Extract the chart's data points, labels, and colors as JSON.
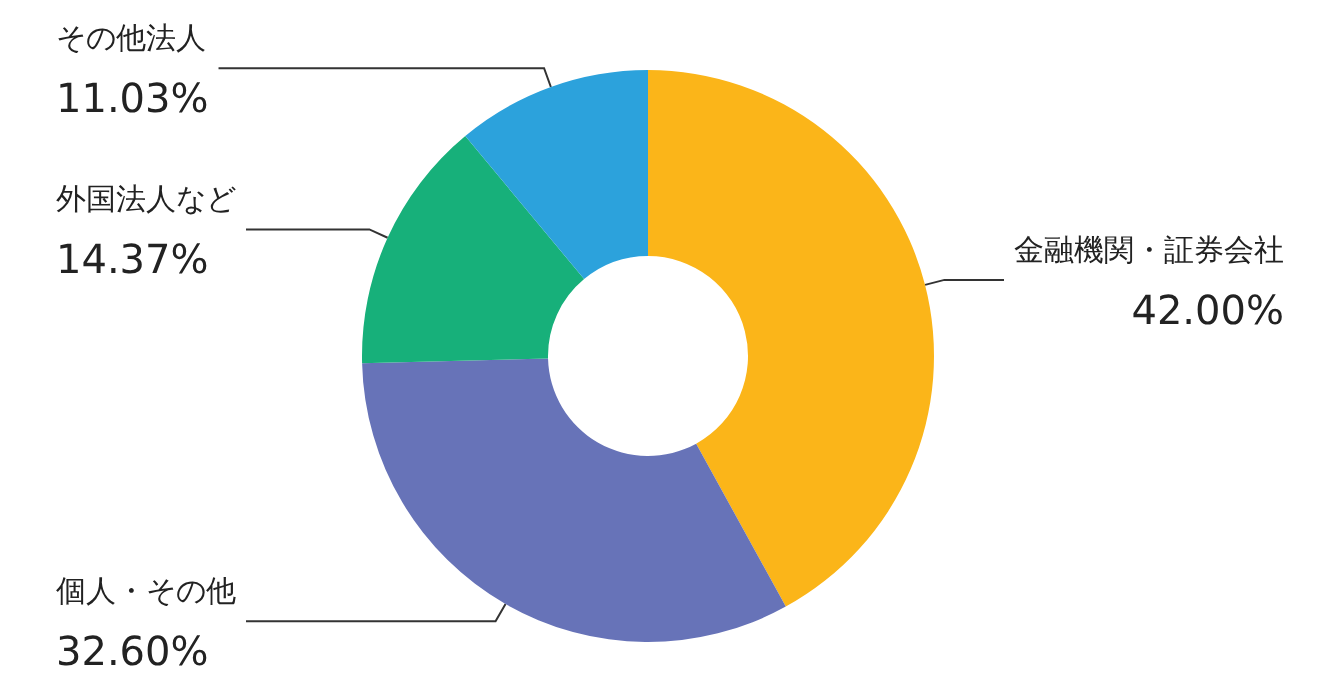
{
  "chart_data": {
    "type": "donut",
    "categories": [
      "金融機関・証券会社",
      "個人・その他",
      "外国法人など",
      "その他法人"
    ],
    "values": [
      42.0,
      32.6,
      14.37,
      11.03
    ],
    "value_labels": [
      "42.00%",
      "32.60%",
      "14.37%",
      "11.03%"
    ],
    "colors": [
      "#fbb519",
      "#6773b8",
      "#17b07a",
      "#2ca2dc"
    ],
    "legend": false
  }
}
